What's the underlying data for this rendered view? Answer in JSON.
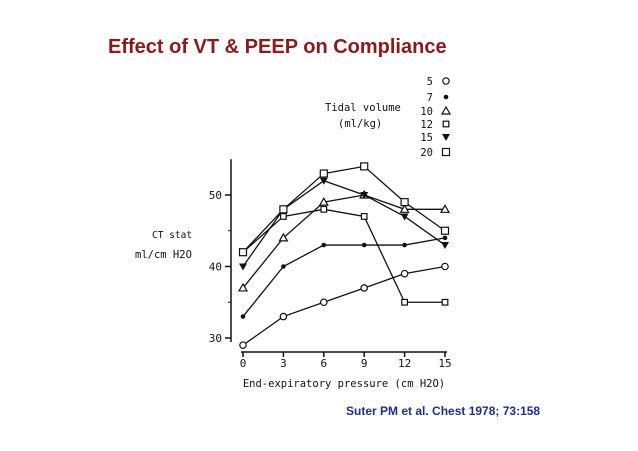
{
  "slide": {
    "title": "Effect of VT & PEEP on Compliance",
    "citation": "Suter PM et al. Chest 1978; 73:158",
    "title_color": "#8b1a1a",
    "citation_color": "#1f2d8a"
  },
  "chart_data": {
    "type": "line",
    "xlabel": "End-expiratory pressure (cm H2O)",
    "ylabel_line1": "CT stat",
    "ylabel_line2": "ml/cm H2O",
    "x": [
      0,
      3,
      6,
      9,
      12,
      15
    ],
    "xlim": [
      0,
      15
    ],
    "ylim": [
      30,
      55
    ],
    "xticks": [
      "0",
      "3",
      "6",
      "9",
      "12",
      "15"
    ],
    "yticks": [
      "30",
      "40",
      "50"
    ],
    "ytick_values": [
      30,
      40,
      50
    ],
    "legend_title_line1": "Tidal volume",
    "legend_title_line2": "(ml/kg)",
    "series": [
      {
        "name": "5",
        "marker": "open-circle",
        "x": [
          0,
          3,
          6,
          9,
          12,
          15
        ],
        "values": [
          29,
          33,
          35,
          37,
          39,
          40
        ]
      },
      {
        "name": "7",
        "marker": "filled-circle",
        "x": [
          0,
          3,
          6,
          9,
          12,
          15
        ],
        "values": [
          33,
          40,
          43,
          43,
          43,
          44
        ]
      },
      {
        "name": "10",
        "marker": "open-triangle",
        "x": [
          0,
          3,
          6,
          9,
          12,
          15
        ],
        "values": [
          37,
          44,
          49,
          50,
          48,
          48
        ]
      },
      {
        "name": "12",
        "marker": "small-square",
        "x": [
          0,
          3,
          6,
          9,
          12,
          15
        ],
        "values": [
          42,
          47,
          48,
          47,
          35,
          35
        ]
      },
      {
        "name": "15",
        "marker": "filled-triangle-down",
        "x": [
          0,
          3,
          6,
          9,
          12,
          15
        ],
        "values": [
          40,
          48,
          52,
          50,
          47,
          43
        ]
      },
      {
        "name": "20",
        "marker": "large-square",
        "x": [
          0,
          3,
          6,
          9,
          12,
          15
        ],
        "values": [
          42,
          48,
          53,
          54,
          49,
          45
        ]
      }
    ]
  }
}
